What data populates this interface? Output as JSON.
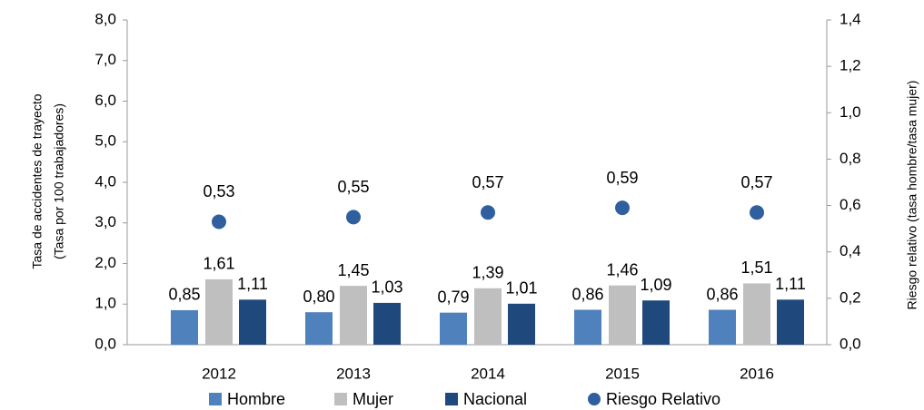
{
  "chart_data": {
    "type": "bar",
    "categories": [
      "2012",
      "2013",
      "2014",
      "2015",
      "2016"
    ],
    "series": [
      {
        "name": "Hombre",
        "color": "#4f81bd",
        "values": [
          0.85,
          0.8,
          0.79,
          0.86,
          0.86
        ],
        "value_labels": [
          "0,85",
          "0,80",
          "0,79",
          "0,86",
          "0,86"
        ]
      },
      {
        "name": "Mujer",
        "color": "#bfbfbf",
        "values": [
          1.61,
          1.45,
          1.39,
          1.46,
          1.51
        ],
        "value_labels": [
          "1,61",
          "1,45",
          "1,39",
          "1,46",
          "1,51"
        ]
      },
      {
        "name": "Nacional",
        "color": "#1f497d",
        "values": [
          1.11,
          1.03,
          1.01,
          1.09,
          1.11
        ],
        "value_labels": [
          "1,11",
          "1,03",
          "1,01",
          "1,09",
          "1,11"
        ]
      },
      {
        "name": "Riesgo Relativo",
        "color": "#2f5f9e",
        "type": "scatter",
        "axis": "y2",
        "values": [
          0.53,
          0.55,
          0.57,
          0.59,
          0.57
        ],
        "value_labels": [
          "0,53",
          "0,55",
          "0,57",
          "0,59",
          "0,57"
        ]
      }
    ],
    "y_label": [
      "Tasa de accidentes de trayecto",
      "(Tasa por 100 trabajadores)"
    ],
    "y2_label": "Riesgo relativo (tasa hombre/tasa mujer)",
    "ylim": [
      0,
      8
    ],
    "yticks": [
      {
        "value": 0,
        "label": "0,0"
      },
      {
        "value": 1,
        "label": "1,0"
      },
      {
        "value": 2,
        "label": "2,0"
      },
      {
        "value": 3,
        "label": "3,0"
      },
      {
        "value": 4,
        "label": "4,0"
      },
      {
        "value": 5,
        "label": "5,0"
      },
      {
        "value": 6,
        "label": "6,0"
      },
      {
        "value": 7,
        "label": "7,0"
      },
      {
        "value": 8,
        "label": "8,0"
      }
    ],
    "y2lim": [
      0,
      1.4
    ],
    "y2ticks": [
      {
        "value": 0,
        "label": "0,0"
      },
      {
        "value": 0.2,
        "label": "0,2"
      },
      {
        "value": 0.4,
        "label": "0,4"
      },
      {
        "value": 0.6,
        "label": "0,6"
      },
      {
        "value": 0.8,
        "label": "0,8"
      },
      {
        "value": 1.0,
        "label": "1,0"
      },
      {
        "value": 1.2,
        "label": "1,2"
      },
      {
        "value": 1.4,
        "label": "1,4"
      }
    ],
    "legend": "bottom"
  }
}
